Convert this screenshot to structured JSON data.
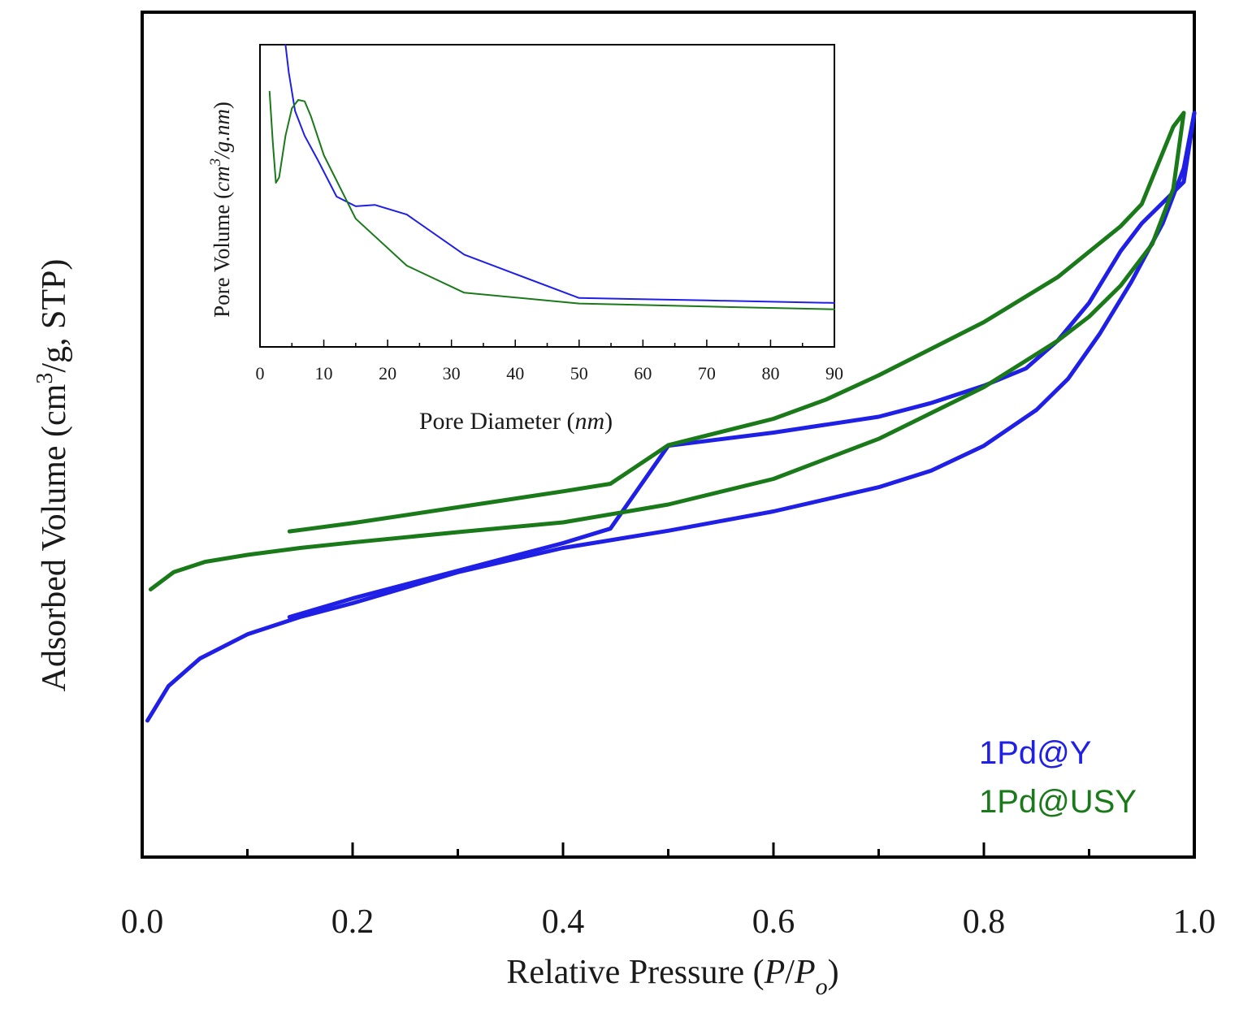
{
  "chart_data": [
    {
      "id": "main",
      "type": "line",
      "title": "",
      "xlabel_main": "Relative Pressure (",
      "xlabel_var_p": "P",
      "xlabel_slash": "/",
      "xlabel_var_po": "P",
      "xlabel_sub": "o",
      "xlabel_close": ")",
      "ylabel_pre": "Adsorbed Volume (cm",
      "ylabel_sup": "3",
      "ylabel_post": "/g, STP)",
      "xlim": [
        0.0,
        1.0
      ],
      "ylim": [
        0,
        100
      ],
      "yticks_labeled": false,
      "xtick_labels": [
        "0.0",
        "0.2",
        "0.4",
        "0.6",
        "0.8",
        "1.0"
      ],
      "xticks_major": [
        0.0,
        0.2,
        0.4,
        0.6,
        0.8,
        1.0
      ],
      "xticks_minor": [
        0.1,
        0.3,
        0.5,
        0.7,
        0.9
      ],
      "legend": [
        "1Pd@Y",
        "1Pd@USY"
      ],
      "colors": {
        "1Pd@Y": "#1f1fe6",
        "1Pd@USY": "#1a7a1a"
      },
      "series": [
        {
          "name": "1Pd@Y",
          "branch": "adsorption",
          "x": [
            0.005,
            0.025,
            0.055,
            0.1,
            0.15,
            0.2,
            0.3,
            0.4,
            0.5,
            0.6,
            0.7,
            0.75,
            0.8,
            0.85,
            0.88,
            0.91,
            0.94,
            0.97,
            0.99,
            1.0
          ],
          "y": [
            10.0,
            15.0,
            19.0,
            22.5,
            25.0,
            27.0,
            31.5,
            35.0,
            37.5,
            40.3,
            43.8,
            46.2,
            49.8,
            55.0,
            59.5,
            66.0,
            73.5,
            82.0,
            90.0,
            98.0
          ]
        },
        {
          "name": "1Pd@Y",
          "branch": "desorption",
          "x": [
            1.0,
            0.99,
            0.95,
            0.93,
            0.9,
            0.87,
            0.84,
            0.8,
            0.75,
            0.7,
            0.6,
            0.5,
            0.445,
            0.4,
            0.3,
            0.2,
            0.14
          ],
          "y": [
            98.0,
            88.0,
            82.0,
            78.0,
            70.5,
            65.0,
            61.0,
            58.5,
            56.0,
            54.0,
            51.7,
            49.8,
            37.8,
            35.7,
            31.7,
            27.7,
            25.0
          ]
        },
        {
          "name": "1Pd@USY",
          "branch": "adsorption",
          "x": [
            0.008,
            0.03,
            0.06,
            0.1,
            0.15,
            0.2,
            0.3,
            0.4,
            0.5,
            0.6,
            0.7,
            0.8,
            0.87,
            0.9,
            0.93,
            0.96,
            0.98,
            0.99
          ],
          "y": [
            29.0,
            31.5,
            33.0,
            34.0,
            35.0,
            35.8,
            37.3,
            38.7,
            41.3,
            45.0,
            50.8,
            58.3,
            65.0,
            68.5,
            73.0,
            79.0,
            87.0,
            98.0
          ]
        },
        {
          "name": "1Pd@USY",
          "branch": "desorption",
          "x": [
            0.99,
            0.98,
            0.95,
            0.93,
            0.87,
            0.8,
            0.7,
            0.65,
            0.6,
            0.5,
            0.445,
            0.4,
            0.3,
            0.2,
            0.14
          ],
          "y": [
            98.0,
            96.0,
            84.8,
            81.6,
            74.2,
            67.7,
            60.0,
            56.5,
            53.7,
            49.9,
            44.3,
            43.2,
            40.9,
            38.6,
            37.4
          ]
        }
      ]
    },
    {
      "id": "inset",
      "type": "line",
      "title": "",
      "xlabel_pre": "Pore Diameter (",
      "xlabel_var": "nm",
      "xlabel_post": ")",
      "ylabel_pre": "Pore Volume (",
      "ylabel_var1": "cm",
      "ylabel_sup": "3",
      "ylabel_var2": "/g.nm",
      "ylabel_post": ")",
      "xlim": [
        0,
        90
      ],
      "ylim": [
        0,
        100
      ],
      "yticks_labeled": false,
      "xtick_labels": [
        "0",
        "10",
        "20",
        "30",
        "40",
        "50",
        "60",
        "70",
        "80",
        "90"
      ],
      "xticks_major": [
        0,
        10,
        20,
        30,
        40,
        50,
        60,
        70,
        80,
        90
      ],
      "xticks_minor": [
        5,
        15,
        25,
        35,
        45,
        55,
        65,
        75,
        85
      ],
      "series": [
        {
          "name": "1Pd@Y",
          "x": [
            4.0,
            4.5,
            5.5,
            7.0,
            9.0,
            12.0,
            15.0,
            18.0,
            23.0,
            32.0,
            40.0,
            50.0,
            70.0,
            90.0
          ],
          "y": [
            100.0,
            90.0,
            76.0,
            67.0,
            58.5,
            45.0,
            41.5,
            42.0,
            38.5,
            24.0,
            17.0,
            8.3,
            7.4,
            6.5
          ]
        },
        {
          "name": "1Pd@USY",
          "x": [
            1.5,
            2.0,
            2.5,
            3.0,
            4.0,
            5.0,
            6.0,
            7.0,
            8.0,
            10.0,
            15.0,
            23.0,
            32.0,
            50.0,
            70.0,
            90.0
          ],
          "y": [
            83.0,
            65.0,
            50.0,
            52.0,
            67.0,
            77.0,
            80.0,
            79.5,
            74.0,
            60.0,
            37.0,
            20.0,
            10.2,
            6.3,
            5.2,
            4.2
          ]
        }
      ]
    }
  ]
}
